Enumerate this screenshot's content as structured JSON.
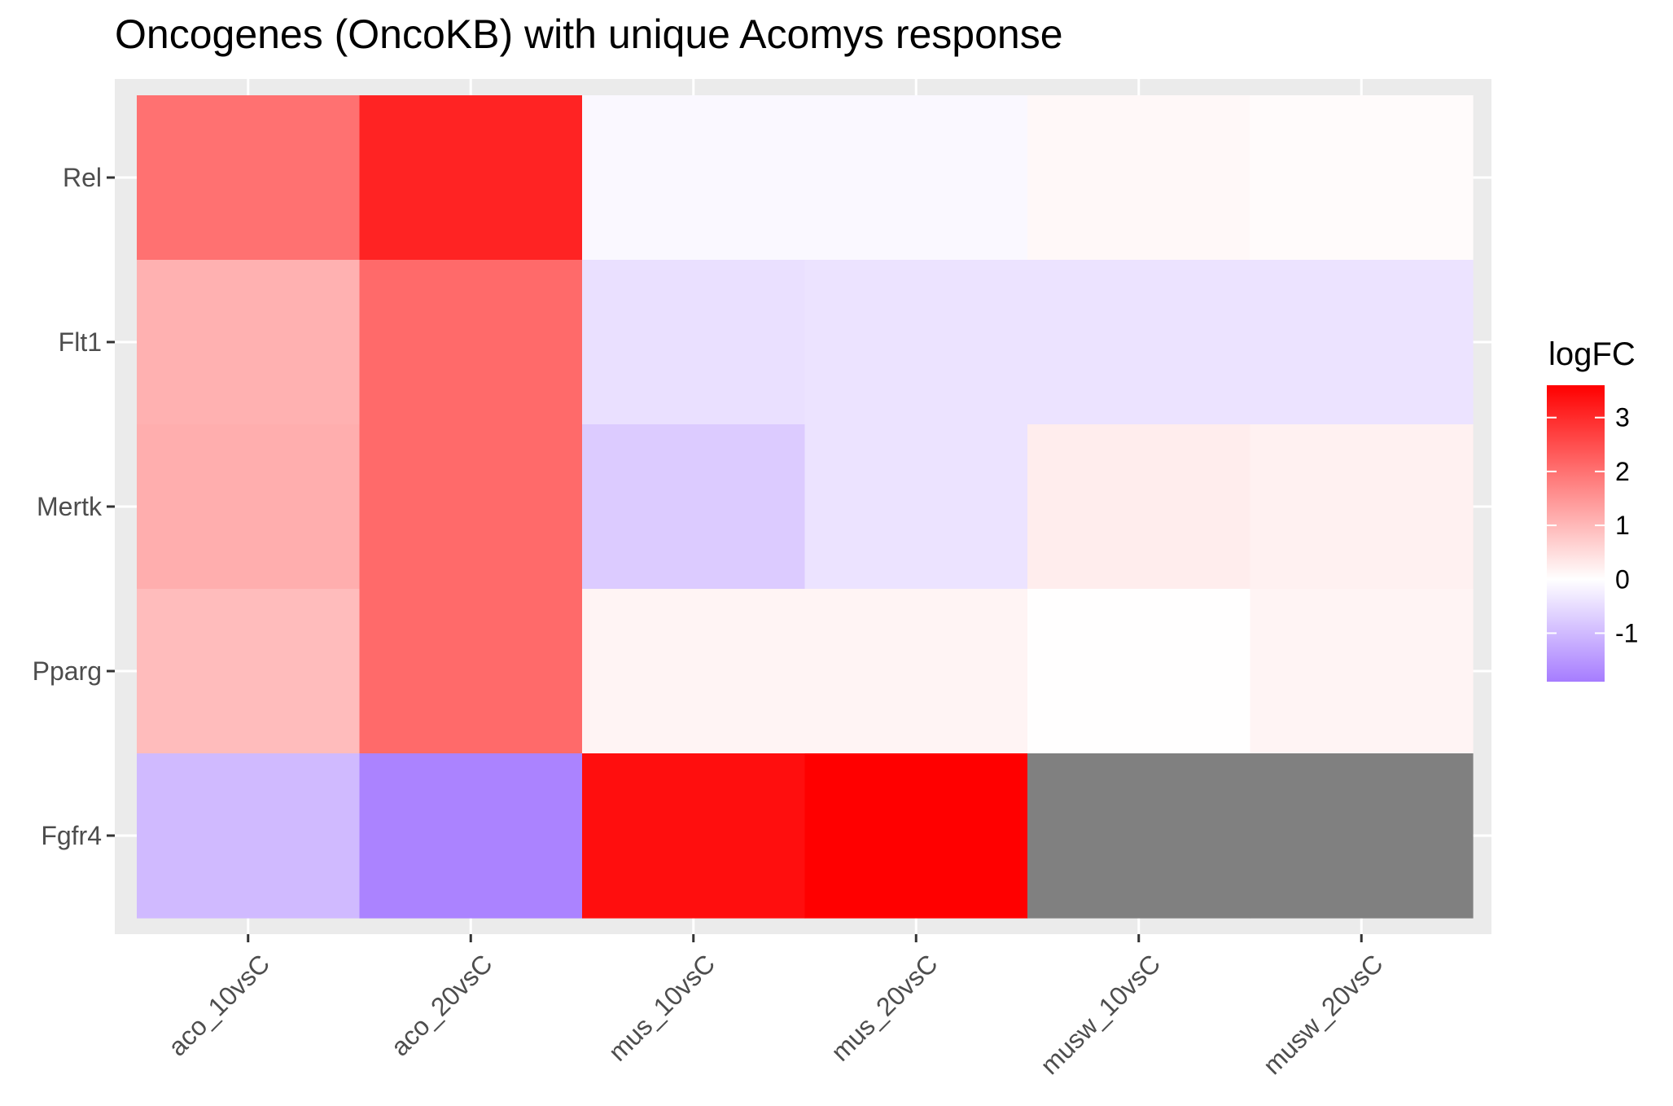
{
  "chart_data": {
    "type": "heatmap",
    "title": "Oncogenes (OncoKB) with unique Acomys response",
    "xlabel": "",
    "ylabel": "",
    "x_categories": [
      "aco_10vsC",
      "aco_20vsC",
      "mus_10vsC",
      "mus_20vsC",
      "musw_10vsC",
      "musw_20vsC"
    ],
    "y_categories": [
      "Rel",
      "Flt1",
      "Mertk",
      "Pparg",
      "Fgfr4"
    ],
    "values": [
      [
        2.0,
        3.1,
        -0.1,
        -0.1,
        0.1,
        0.05
      ],
      [
        1.1,
        2.1,
        -0.45,
        -0.4,
        -0.4,
        -0.4
      ],
      [
        1.15,
        2.1,
        -0.75,
        -0.4,
        0.25,
        0.2
      ],
      [
        0.95,
        2.1,
        0.15,
        0.15,
        0.02,
        0.15
      ],
      [
        -1.0,
        -1.8,
        3.4,
        3.6,
        null,
        null
      ]
    ],
    "na_color": "#808080",
    "legend": {
      "title": "logFC",
      "placement": "right",
      "ticks": [
        3,
        2,
        1,
        0,
        -1
      ],
      "tick_labels": [
        "3",
        "2",
        "1",
        "0",
        "-1"
      ],
      "range": [
        -1.9,
        3.6
      ],
      "low_color": "#a67cff",
      "mid_color": "#ffffff",
      "high_color": "#ff0000"
    },
    "grid": true,
    "panel_background": "#ebebeb"
  }
}
